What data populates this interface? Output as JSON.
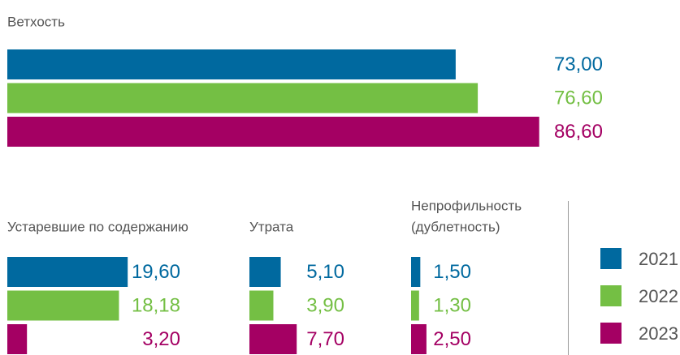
{
  "chart_data": [
    {
      "type": "bar",
      "orientation": "horizontal",
      "title": "Ветхость",
      "series": [
        {
          "name": "2021",
          "color": "#00699f",
          "values": [
            73.0
          ],
          "value_labels": [
            "73,00"
          ]
        },
        {
          "name": "2022",
          "color": "#74bf44",
          "values": [
            76.6
          ],
          "value_labels": [
            "76,60"
          ]
        },
        {
          "name": "2023",
          "color": "#a40063",
          "values": [
            86.6
          ],
          "value_labels": [
            "86,60"
          ]
        }
      ]
    },
    {
      "type": "bar",
      "orientation": "horizontal",
      "title": "Устаревшие по содержанию",
      "series": [
        {
          "name": "2021",
          "color": "#00699f",
          "values": [
            19.6
          ],
          "value_labels": [
            "19,60"
          ]
        },
        {
          "name": "2022",
          "color": "#74bf44",
          "values": [
            18.18
          ],
          "value_labels": [
            "18,18"
          ]
        },
        {
          "name": "2023",
          "color": "#a40063",
          "values": [
            3.2
          ],
          "value_labels": [
            "3,20"
          ]
        }
      ]
    },
    {
      "type": "bar",
      "orientation": "horizontal",
      "title": "Утрата",
      "series": [
        {
          "name": "2021",
          "color": "#00699f",
          "values": [
            5.1
          ],
          "value_labels": [
            "5,10"
          ]
        },
        {
          "name": "2022",
          "color": "#74bf44",
          "values": [
            3.9
          ],
          "value_labels": [
            "3,90"
          ]
        },
        {
          "name": "2023",
          "color": "#a40063",
          "values": [
            7.7
          ],
          "value_labels": [
            "7,70"
          ]
        }
      ]
    },
    {
      "type": "bar",
      "orientation": "horizontal",
      "title": [
        "Непрофильность",
        "(дублетность)"
      ],
      "series": [
        {
          "name": "2021",
          "color": "#00699f",
          "values": [
            1.5
          ],
          "value_labels": [
            "1,50"
          ]
        },
        {
          "name": "2022",
          "color": "#74bf44",
          "values": [
            1.3
          ],
          "value_labels": [
            "1,30"
          ]
        },
        {
          "name": "2023",
          "color": "#a40063",
          "values": [
            2.5
          ],
          "value_labels": [
            "2,50"
          ]
        }
      ]
    }
  ]
}
